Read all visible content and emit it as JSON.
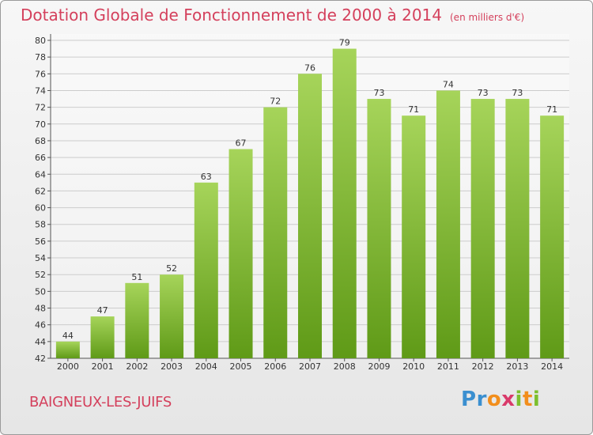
{
  "title": "Dotation Globale de Fonctionnement de 2000 à 2014",
  "unit": "(en milliers d'€)",
  "commune": "BAIGNEUX-LES-JUIFS",
  "logo": {
    "letters": [
      {
        "ch": "P",
        "color": "#3a8fd0"
      },
      {
        "ch": "r",
        "color": "#3a8fd0"
      },
      {
        "ch": "o",
        "color": "#f28e1c"
      },
      {
        "ch": "x",
        "color": "#d93a6a"
      },
      {
        "ch": "i",
        "color": "#7cbf2e"
      },
      {
        "ch": "t",
        "color": "#f28e1c"
      },
      {
        "ch": "i",
        "color": "#7cbf2e"
      }
    ]
  },
  "colors": {
    "bar_top": "#a6d45a",
    "bar_bottom": "#5f9a17",
    "accent": "#d4405c",
    "grid": "#cccccc"
  },
  "chart_data": {
    "type": "bar",
    "categories": [
      "2000",
      "2001",
      "2002",
      "2003",
      "2004",
      "2005",
      "2006",
      "2007",
      "2008",
      "2009",
      "2010",
      "2011",
      "2012",
      "2013",
      "2014"
    ],
    "values": [
      44,
      47,
      51,
      52,
      63,
      67,
      72,
      76,
      79,
      73,
      71,
      74,
      73,
      73,
      71
    ],
    "title": "Dotation Globale de Fonctionnement de 2000 à 2014",
    "xlabel": "",
    "ylabel": "",
    "ylim": [
      42,
      80
    ],
    "yticks": [
      42,
      44,
      46,
      48,
      50,
      52,
      54,
      56,
      58,
      60,
      62,
      64,
      66,
      68,
      70,
      72,
      74,
      76,
      78,
      80
    ],
    "grid": true,
    "data_labels": true
  }
}
